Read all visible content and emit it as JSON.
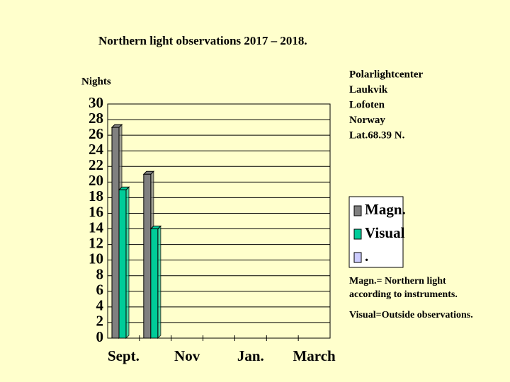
{
  "chart_data": {
    "type": "bar",
    "title": "Northern light observations 2017 – 2018.",
    "ylabel": "Nights",
    "categories": [
      "Sept.",
      null,
      "Nov",
      null,
      "Jan.",
      null,
      "March"
    ],
    "series": [
      {
        "name": "Magn.",
        "color": "#808080",
        "values": [
          27,
          21,
          null,
          null,
          null,
          null,
          null
        ]
      },
      {
        "name": "Visual",
        "color": "#00cc99",
        "values": [
          19,
          14,
          null,
          null,
          null,
          null,
          null
        ]
      },
      {
        "name": ".",
        "color": "#ccccff",
        "values": [
          null,
          null,
          null,
          null,
          null,
          null,
          null
        ]
      }
    ],
    "ylim": [
      0,
      30
    ],
    "yticks": [
      0,
      2,
      4,
      6,
      8,
      10,
      12,
      14,
      16,
      18,
      20,
      22,
      24,
      26,
      28,
      30
    ],
    "grid": true,
    "info": [
      "Polarlightcenter",
      "Laukvik",
      "Lofoten",
      "Norway",
      "Lat.68.39 N."
    ],
    "notes": [
      "Magn.= Northern light",
      "according to instruments.",
      "Visual=Outside observations."
    ]
  }
}
